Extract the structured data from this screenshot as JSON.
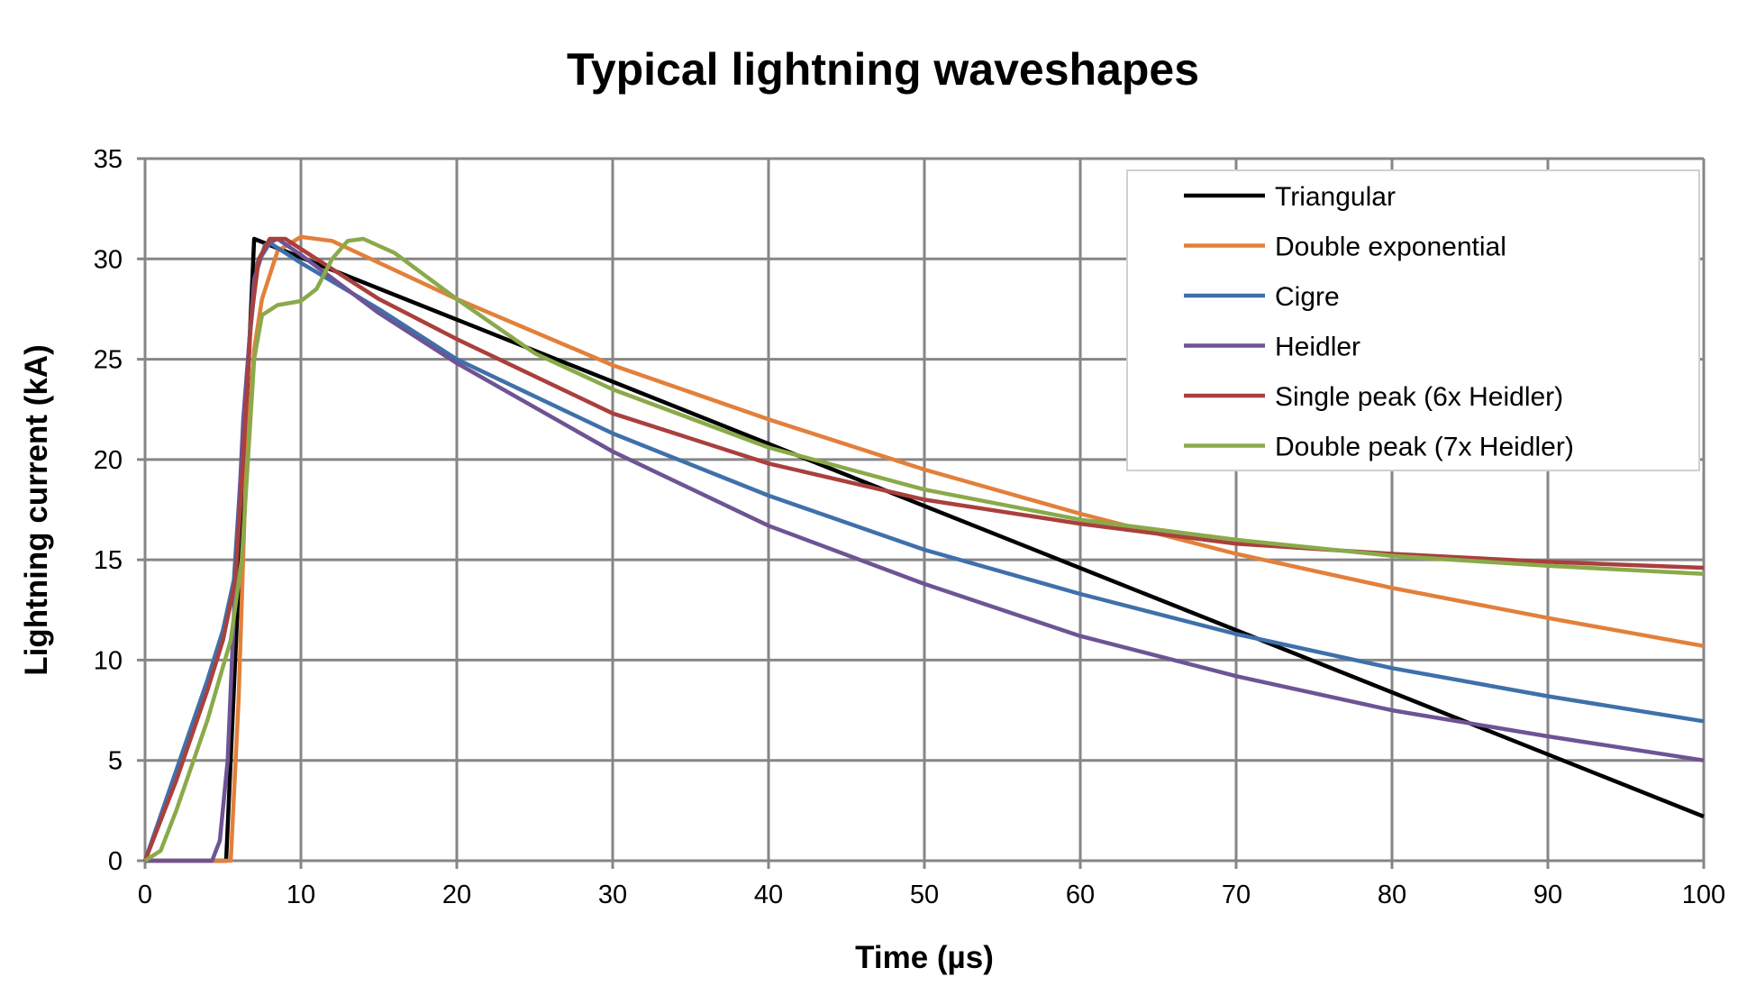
{
  "chart_data": {
    "type": "line",
    "title": "Typical lightning waveshapes",
    "xlabel": "Time (µs)",
    "ylabel": "Lightning current (kA)",
    "xlim": [
      0,
      100
    ],
    "ylim": [
      0,
      35
    ],
    "xticks": [
      0,
      10,
      20,
      30,
      40,
      50,
      60,
      70,
      80,
      90,
      100
    ],
    "yticks": [
      0,
      5,
      10,
      15,
      20,
      25,
      30,
      35
    ],
    "grid": true,
    "legend_position": "top-right",
    "series": [
      {
        "name": "Triangular",
        "color": "#000000",
        "points": [
          [
            0,
            0
          ],
          [
            5.2,
            0
          ],
          [
            7,
            31
          ],
          [
            100,
            2.2
          ]
        ]
      },
      {
        "name": "Double exponential",
        "color": "#E2803A",
        "points": [
          [
            0,
            0
          ],
          [
            5.5,
            0
          ],
          [
            6,
            8
          ],
          [
            6.5,
            20
          ],
          [
            7,
            25.5
          ],
          [
            7.5,
            28
          ],
          [
            8.5,
            30.4
          ],
          [
            10,
            31.1
          ],
          [
            12,
            30.9
          ],
          [
            20,
            28
          ],
          [
            30,
            24.7
          ],
          [
            40,
            22
          ],
          [
            50,
            19.5
          ],
          [
            60,
            17.3
          ],
          [
            70,
            15.3
          ],
          [
            80,
            13.6
          ],
          [
            90,
            12.1
          ],
          [
            100,
            10.7
          ]
        ]
      },
      {
        "name": "Cigre",
        "color": "#3F70AA",
        "points": [
          [
            0,
            0
          ],
          [
            2,
            4.5
          ],
          [
            4,
            9
          ],
          [
            5,
            11.5
          ],
          [
            5.7,
            14
          ],
          [
            6.2,
            20
          ],
          [
            6.7,
            26
          ],
          [
            7.2,
            29.8
          ],
          [
            8,
            30.8
          ],
          [
            10,
            29.8
          ],
          [
            15,
            27.5
          ],
          [
            20,
            25
          ],
          [
            30,
            21.3
          ],
          [
            40,
            18.2
          ],
          [
            50,
            15.5
          ],
          [
            60,
            13.3
          ],
          [
            70,
            11.3
          ],
          [
            80,
            9.6
          ],
          [
            90,
            8.2
          ],
          [
            100,
            6.95
          ]
        ]
      },
      {
        "name": "Heidler",
        "color": "#6E5494",
        "points": [
          [
            0,
            0
          ],
          [
            4.3,
            0
          ],
          [
            4.8,
            1
          ],
          [
            5.3,
            5
          ],
          [
            5.8,
            14
          ],
          [
            6.3,
            22
          ],
          [
            7,
            29
          ],
          [
            7.7,
            30.7
          ],
          [
            8.5,
            31
          ],
          [
            10,
            30.2
          ],
          [
            15,
            27.3
          ],
          [
            20,
            24.8
          ],
          [
            30,
            20.4
          ],
          [
            40,
            16.7
          ],
          [
            50,
            13.8
          ],
          [
            60,
            11.2
          ],
          [
            70,
            9.2
          ],
          [
            80,
            7.5
          ],
          [
            90,
            6.2
          ],
          [
            100,
            5
          ]
        ]
      },
      {
        "name": "Single peak (6x Heidler)",
        "color": "#A9403D",
        "points": [
          [
            0,
            0
          ],
          [
            2,
            4
          ],
          [
            4,
            8.5
          ],
          [
            5,
            11
          ],
          [
            5.8,
            14
          ],
          [
            6.3,
            20
          ],
          [
            6.8,
            27
          ],
          [
            7.3,
            30
          ],
          [
            8,
            31
          ],
          [
            9,
            31
          ],
          [
            10,
            30.5
          ],
          [
            15,
            28
          ],
          [
            20,
            26
          ],
          [
            30,
            22.3
          ],
          [
            40,
            19.8
          ],
          [
            50,
            18
          ],
          [
            60,
            16.8
          ],
          [
            70,
            15.8
          ],
          [
            80,
            15.3
          ],
          [
            90,
            14.9
          ],
          [
            100,
            14.6
          ]
        ]
      },
      {
        "name": "Double peak (7x Heidler)",
        "color": "#8AAA4A",
        "points": [
          [
            0,
            0
          ],
          [
            1,
            0.5
          ],
          [
            2,
            2.5
          ],
          [
            4,
            7
          ],
          [
            5.5,
            11
          ],
          [
            6.2,
            15
          ],
          [
            6.6,
            20
          ],
          [
            7,
            25
          ],
          [
            7.5,
            27.2
          ],
          [
            8.5,
            27.7
          ],
          [
            10,
            27.9
          ],
          [
            11,
            28.5
          ],
          [
            12,
            30
          ],
          [
            13,
            30.9
          ],
          [
            14,
            31
          ],
          [
            16,
            30.3
          ],
          [
            20,
            28
          ],
          [
            25,
            25.3
          ],
          [
            30,
            23.5
          ],
          [
            40,
            20.6
          ],
          [
            50,
            18.5
          ],
          [
            60,
            17
          ],
          [
            70,
            16
          ],
          [
            80,
            15.2
          ],
          [
            90,
            14.7
          ],
          [
            100,
            14.3
          ]
        ]
      }
    ]
  }
}
